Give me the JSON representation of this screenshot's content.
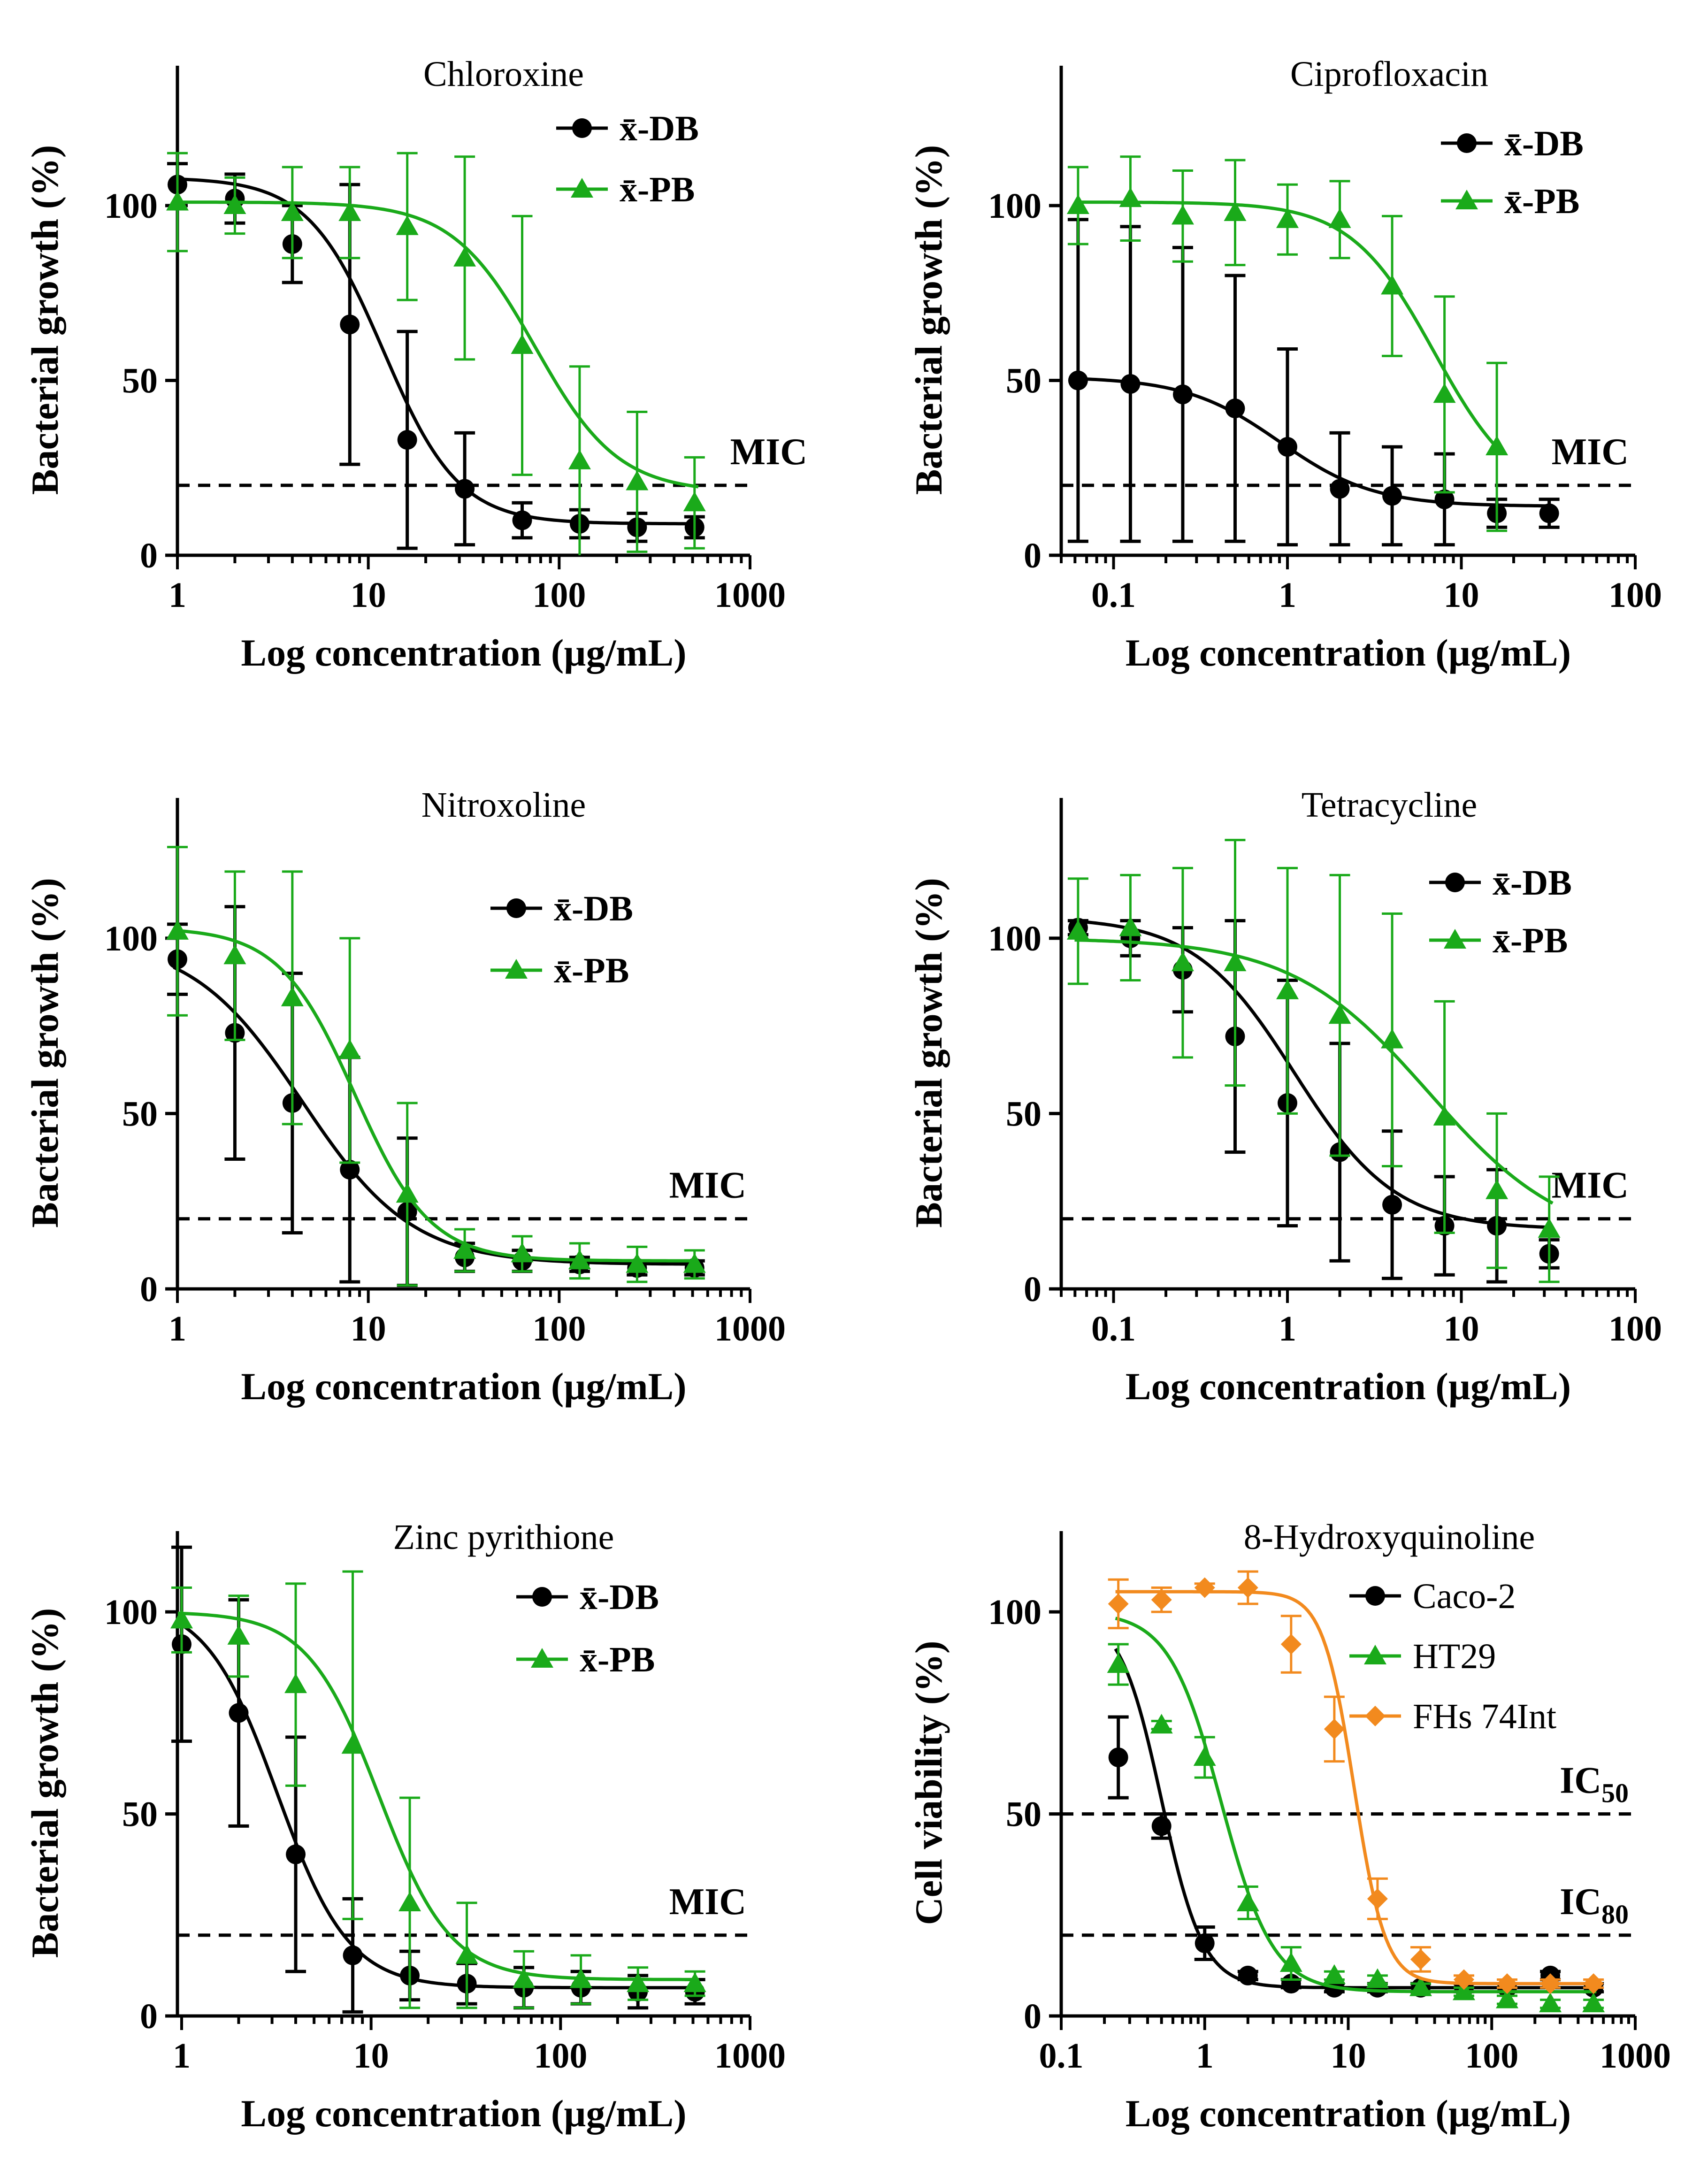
{
  "chart_data": [
    {
      "type": "scatter",
      "title": "Chloroxine",
      "ylabel": "Bacterial growth (%)",
      "xlabel": "Log concentration (µg/mL)",
      "xscale": "log",
      "xlim": [
        1,
        1000
      ],
      "ylim": [
        0,
        140
      ],
      "xticks": [
        1,
        10,
        100,
        1000
      ],
      "xtick_labels": [
        "1",
        "10",
        "100",
        "1000"
      ],
      "yticks": [
        0,
        50,
        100
      ],
      "ytick_labels": [
        "0",
        "50",
        "100"
      ],
      "threshold": {
        "value": 20,
        "label": "MIC"
      },
      "series": [
        {
          "name": "x̄-DB",
          "color": "#000000",
          "marker": "circle",
          "bold": true,
          "x": [
            1,
            2,
            4,
            8,
            16,
            32,
            64,
            128,
            256,
            512
          ],
          "y": [
            106,
            102,
            89,
            66,
            33,
            19,
            10,
            9,
            8,
            8
          ],
          "err": [
            6,
            7,
            11,
            40,
            31,
            16,
            5,
            4,
            4,
            3
          ],
          "fit": {
            "bottom": 9,
            "top": 108,
            "ec50": 12,
            "hill": 2.2
          }
        },
        {
          "name": "x̄-PB",
          "color": "#1aaa1a",
          "marker": "triangle",
          "bold": true,
          "x": [
            1,
            2,
            4,
            8,
            16,
            32,
            64,
            128,
            256,
            512
          ],
          "y": [
            101,
            100,
            98,
            98,
            94,
            85,
            60,
            27,
            21,
            15
          ],
          "err": [
            14,
            8,
            13,
            13,
            21,
            29,
            37,
            27,
            20,
            13
          ],
          "fit": {
            "bottom": 18,
            "top": 101,
            "ec50": 75,
            "hill": 2.0
          }
        }
      ]
    },
    {
      "type": "scatter",
      "title": "Ciprofloxacin",
      "ylabel": "Bacterial growth (%)",
      "xlabel": "Log concentration (µg/mL)",
      "xscale": "log",
      "xlim": [
        0.05,
        100
      ],
      "ylim": [
        0,
        140
      ],
      "xticks": [
        0.1,
        1,
        10,
        100
      ],
      "xtick_labels": [
        "0.1",
        "1",
        "10",
        "100"
      ],
      "yticks": [
        0,
        50,
        100
      ],
      "ytick_labels": [
        "0",
        "50",
        "100"
      ],
      "threshold": {
        "value": 20,
        "label": "MIC"
      },
      "series": [
        {
          "name": "x̄-DB",
          "color": "#000000",
          "marker": "circle",
          "bold": true,
          "x": [
            0.0625,
            0.125,
            0.25,
            0.5,
            1,
            2,
            4,
            8,
            16,
            32
          ],
          "y": [
            50,
            49,
            46,
            42,
            31,
            19,
            17,
            16,
            12,
            12
          ],
          "err": [
            46,
            45,
            42,
            38,
            28,
            16,
            14,
            13,
            4,
            4
          ],
          "fit": {
            "bottom": 14,
            "top": 51,
            "ec50": 0.9,
            "hill": 1.6
          }
        },
        {
          "name": "x̄-PB",
          "color": "#1aaa1a",
          "marker": "triangle",
          "bold": true,
          "x": [
            0.0625,
            0.125,
            0.25,
            0.5,
            1,
            2,
            4,
            8,
            16
          ],
          "y": [
            100,
            102,
            97,
            98,
            96,
            96,
            77,
            46,
            31
          ],
          "err": [
            11,
            12,
            13,
            15,
            10,
            11,
            20,
            28,
            24
          ],
          "fit": {
            "bottom": 15,
            "top": 101,
            "ec50": 7,
            "hill": 1.8
          }
        }
      ]
    },
    {
      "type": "scatter",
      "title": "Nitroxoline",
      "ylabel": "Bacterial growth (%)",
      "xlabel": "Log concentration (µg/mL)",
      "xscale": "log",
      "xlim": [
        1,
        1000
      ],
      "ylim": [
        0,
        140
      ],
      "xticks": [
        1,
        10,
        100,
        1000
      ],
      "xtick_labels": [
        "1",
        "10",
        "100",
        "1000"
      ],
      "yticks": [
        0,
        50,
        100
      ],
      "ytick_labels": [
        "0",
        "50",
        "100"
      ],
      "threshold": {
        "value": 20,
        "label": "MIC"
      },
      "series": [
        {
          "name": "x̄-DB",
          "color": "#000000",
          "marker": "circle",
          "bold": true,
          "x": [
            1,
            2,
            4,
            8,
            16,
            32,
            64,
            128,
            256,
            512
          ],
          "y": [
            94,
            73,
            53,
            34,
            22,
            9,
            8,
            7,
            6,
            6
          ],
          "err": [
            10,
            36,
            37,
            32,
            21,
            4,
            3,
            2,
            2,
            2
          ],
          "fit": {
            "bottom": 7,
            "top": 100,
            "ec50": 4.5,
            "hill": 1.5
          }
        },
        {
          "name": "x̄-PB",
          "color": "#1aaa1a",
          "marker": "triangle",
          "bold": true,
          "x": [
            1,
            2,
            4,
            8,
            16,
            32,
            64,
            128,
            256,
            512
          ],
          "y": [
            102,
            95,
            83,
            68,
            27,
            11,
            10,
            8,
            7,
            7
          ],
          "err": [
            24,
            24,
            36,
            32,
            26,
            6,
            5,
            5,
            5,
            4
          ],
          "fit": {
            "bottom": 8,
            "top": 103,
            "ec50": 8.5,
            "hill": 2.2
          }
        }
      ]
    },
    {
      "type": "scatter",
      "title": "Tetracycline",
      "ylabel": "Bacterial growth (%)",
      "xlabel": "Log concentration (µg/mL)",
      "xscale": "log",
      "xlim": [
        0.05,
        100
      ],
      "ylim": [
        0,
        140
      ],
      "xticks": [
        0.1,
        1,
        10,
        100
      ],
      "xtick_labels": [
        "0.1",
        "1",
        "10",
        "100"
      ],
      "yticks": [
        0,
        50,
        100
      ],
      "ytick_labels": [
        "0",
        "50",
        "100"
      ],
      "threshold": {
        "value": 20,
        "label": "MIC"
      },
      "series": [
        {
          "name": "x̄-DB",
          "color": "#000000",
          "marker": "circle",
          "bold": true,
          "x": [
            0.0625,
            0.125,
            0.25,
            0.5,
            1,
            2,
            4,
            8,
            16,
            32
          ],
          "y": [
            103,
            100,
            91,
            72,
            53,
            39,
            24,
            18,
            18,
            10
          ],
          "err": [
            2,
            5,
            12,
            33,
            35,
            31,
            21,
            14,
            16,
            4
          ],
          "fit": {
            "bottom": 17,
            "top": 106,
            "ec50": 1.1,
            "hill": 1.5
          }
        },
        {
          "name": "x̄-PB",
          "color": "#1aaa1a",
          "marker": "triangle",
          "bold": true,
          "x": [
            0.0625,
            0.125,
            0.25,
            0.5,
            1,
            2,
            4,
            8,
            16,
            32
          ],
          "y": [
            102,
            103,
            93,
            93,
            85,
            78,
            71,
            49,
            28,
            17
          ],
          "err": [
            15,
            15,
            27,
            35,
            35,
            40,
            36,
            33,
            22,
            15
          ],
          "fit": {
            "bottom": 12,
            "top": 100,
            "ec50": 6.5,
            "hill": 1.1
          }
        }
      ]
    },
    {
      "type": "scatter",
      "title": "Zinc pyrithione",
      "ylabel": "Bacterial growth (%)",
      "xlabel": "Log concentration (µg/mL)",
      "xscale": "log",
      "xlim": [
        0.95,
        1000
      ],
      "ylim": [
        0,
        120
      ],
      "xticks": [
        1,
        10,
        100,
        1000
      ],
      "xtick_labels": [
        "1",
        "10",
        "100",
        "1000"
      ],
      "yticks": [
        0,
        50,
        100
      ],
      "ytick_labels": [
        "0",
        "50",
        "100"
      ],
      "threshold": {
        "value": 20,
        "label": "MIC"
      },
      "series": [
        {
          "name": "x̄-DB",
          "color": "#000000",
          "marker": "circle",
          "bold": true,
          "x": [
            1,
            2,
            4,
            8,
            16,
            32,
            64,
            128,
            256,
            512
          ],
          "y": [
            92,
            75,
            40,
            15,
            10,
            8,
            7,
            7,
            6,
            6
          ],
          "err": [
            24,
            28,
            29,
            14,
            6,
            5,
            5,
            4,
            4,
            3
          ],
          "fit": {
            "bottom": 7,
            "top": 103,
            "ec50": 3.2,
            "hill": 2.3
          }
        },
        {
          "name": "x̄-PB",
          "color": "#1aaa1a",
          "marker": "triangle",
          "bold": true,
          "x": [
            1,
            2,
            4,
            8,
            16,
            32,
            64,
            128,
            256,
            512
          ],
          "y": [
            98,
            94,
            82,
            67,
            28,
            15,
            9,
            9,
            8,
            8
          ],
          "err": [
            8,
            10,
            25,
            43,
            26,
            13,
            7,
            6,
            4,
            3
          ],
          "fit": {
            "bottom": 9,
            "top": 100,
            "ec50": 11,
            "hill": 2.3
          }
        }
      ]
    },
    {
      "type": "scatter",
      "title": "8-Hydroxyquinoline",
      "ylabel": "Cell viability (%)",
      "xlabel": "Log concentration (µg/mL)",
      "xscale": "log",
      "xlim": [
        0.1,
        1000
      ],
      "ylim": [
        0,
        120
      ],
      "xticks": [
        0.1,
        1,
        10,
        100,
        1000
      ],
      "xtick_labels": [
        "0.1",
        "1",
        "10",
        "100",
        "1000"
      ],
      "yticks": [
        0,
        50,
        100
      ],
      "ytick_labels": [
        "0",
        "50",
        "100"
      ],
      "thresholds": [
        {
          "value": 50,
          "label": "IC",
          "subscript": "50"
        },
        {
          "value": 20,
          "label": "IC",
          "subscript": "80"
        }
      ],
      "series": [
        {
          "name": "Caco-2",
          "color": "#000000",
          "marker": "circle",
          "bold": false,
          "x": [
            0.25,
            0.5,
            1,
            2,
            4,
            8,
            16,
            32,
            64,
            128,
            256,
            512
          ],
          "y": [
            64,
            47,
            18,
            10,
            8,
            7,
            7,
            7,
            7,
            7,
            10,
            7
          ],
          "err": [
            10,
            3,
            4,
            1,
            1,
            1,
            1,
            1,
            1,
            1,
            1,
            1
          ],
          "fit": {
            "bottom": 7,
            "top": 100,
            "ec50": 0.5,
            "hill": 3.0
          }
        },
        {
          "name": "HT29",
          "color": "#1aaa1a",
          "marker": "triangle",
          "bold": false,
          "x": [
            0.25,
            0.5,
            1,
            2,
            4,
            8,
            16,
            32,
            64,
            128,
            256,
            512
          ],
          "y": [
            87,
            72,
            64,
            28,
            13,
            10,
            9,
            7,
            6,
            4,
            3,
            3
          ],
          "err": [
            5,
            1,
            5,
            4,
            4,
            1,
            1,
            1,
            1,
            1,
            1,
            1
          ],
          "fit": {
            "bottom": 6,
            "top": 100,
            "ec50": 1.3,
            "hill": 2.4
          }
        },
        {
          "name": "FHs 74Int",
          "color": "#f28a1e",
          "marker": "diamond",
          "bold": false,
          "x": [
            0.25,
            0.5,
            1,
            2,
            4,
            8,
            16,
            32,
            64,
            128,
            256,
            512
          ],
          "y": [
            102,
            103,
            106,
            106,
            92,
            71,
            29,
            14,
            9,
            8,
            8,
            8
          ],
          "err": [
            6,
            3,
            1,
            4,
            7,
            8,
            5,
            3,
            1,
            1,
            1,
            1
          ],
          "fit": {
            "bottom": 8,
            "top": 105,
            "ec50": 11,
            "hill": 4.0
          }
        }
      ]
    }
  ]
}
